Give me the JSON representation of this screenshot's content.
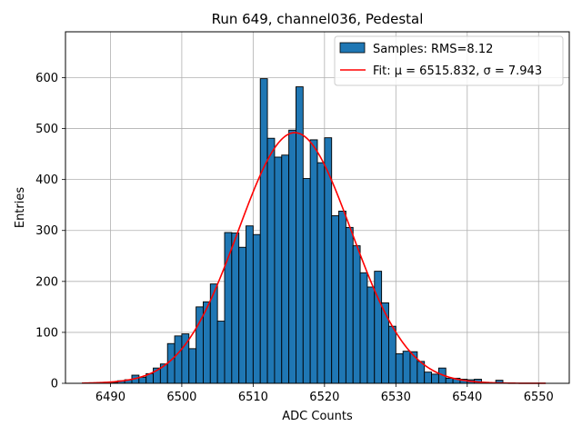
{
  "chart_data": {
    "type": "bar",
    "title": "Run 649, channel036, Pedestal",
    "xlabel": "ADC Counts",
    "ylabel": "Entries",
    "xlim": [
      6483.7,
      6554.3
    ],
    "ylim": [
      0,
      690
    ],
    "x_ticks": [
      6490,
      6500,
      6510,
      6520,
      6530,
      6540,
      6550
    ],
    "y_ticks": [
      0,
      100,
      200,
      300,
      400,
      500,
      600
    ],
    "grid": true,
    "legend_position": "top-right",
    "histogram": {
      "name": "Samples: RMS=8.12",
      "bin_width": 1,
      "bin_starts": [
        6486,
        6487,
        6488,
        6489,
        6490,
        6491,
        6492,
        6493,
        6494,
        6495,
        6496,
        6497,
        6498,
        6499,
        6500,
        6501,
        6502,
        6503,
        6504,
        6505,
        6506,
        6507,
        6508,
        6509,
        6510,
        6511,
        6512,
        6513,
        6514,
        6515,
        6516,
        6517,
        6518,
        6519,
        6520,
        6521,
        6522,
        6523,
        6524,
        6525,
        6526,
        6527,
        6528,
        6529,
        6530,
        6531,
        6532,
        6533,
        6534,
        6535,
        6536,
        6537,
        6538,
        6539,
        6540,
        6541,
        6542,
        6543,
        6544
      ],
      "counts": [
        0,
        0,
        0,
        0,
        2,
        5,
        7,
        16,
        12,
        19,
        30,
        38,
        78,
        93,
        97,
        68,
        150,
        160,
        195,
        122,
        296,
        295,
        267,
        309,
        292,
        598,
        481,
        444,
        448,
        497,
        582,
        402,
        478,
        433,
        482,
        329,
        338,
        306,
        270,
        217,
        189,
        220,
        158,
        112,
        58,
        63,
        62,
        43,
        22,
        18,
        30,
        10,
        10,
        8,
        7,
        8,
        2,
        1,
        6
      ],
      "color": "#1f77b4"
    },
    "fit": {
      "name": "Fit: μ = 6515.832, σ = 7.943",
      "mu": 6515.832,
      "sigma": 7.943,
      "amplitude": 492,
      "x_range": [
        6486,
        6551
      ],
      "color": "#ff0000"
    }
  }
}
